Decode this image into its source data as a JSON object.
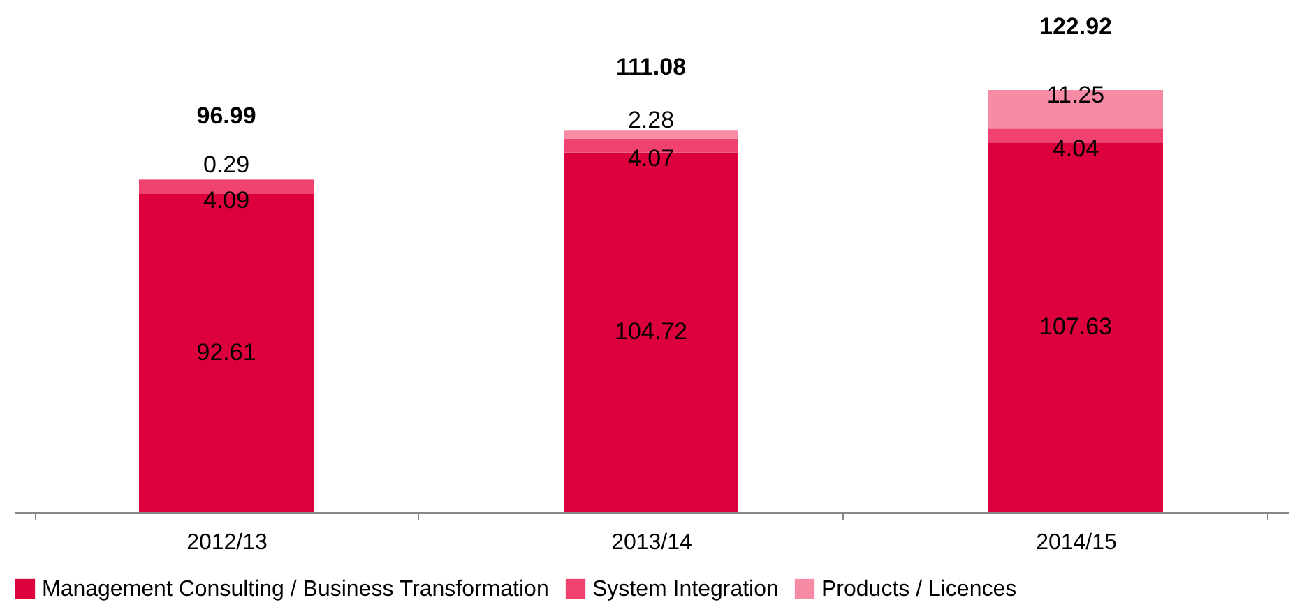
{
  "chart_data": {
    "type": "bar",
    "stacked": true,
    "data_labels": true,
    "legend": "bottom",
    "grid": false,
    "categories": [
      "2012/13",
      "2013/14",
      "2014/15"
    ],
    "series": [
      {
        "name": "Management Consulting / Business Transformation",
        "color": "#dc003c",
        "values": [
          92.61,
          104.72,
          107.63
        ]
      },
      {
        "name": "System Integration",
        "color": "#f0426e",
        "values": [
          4.09,
          4.07,
          4.04
        ]
      },
      {
        "name": "Products / Licences",
        "color": "#f78ba6",
        "values": [
          0.29,
          2.28,
          11.25
        ]
      }
    ],
    "totals": [
      "96.99",
      "111.08",
      "122.92"
    ]
  }
}
